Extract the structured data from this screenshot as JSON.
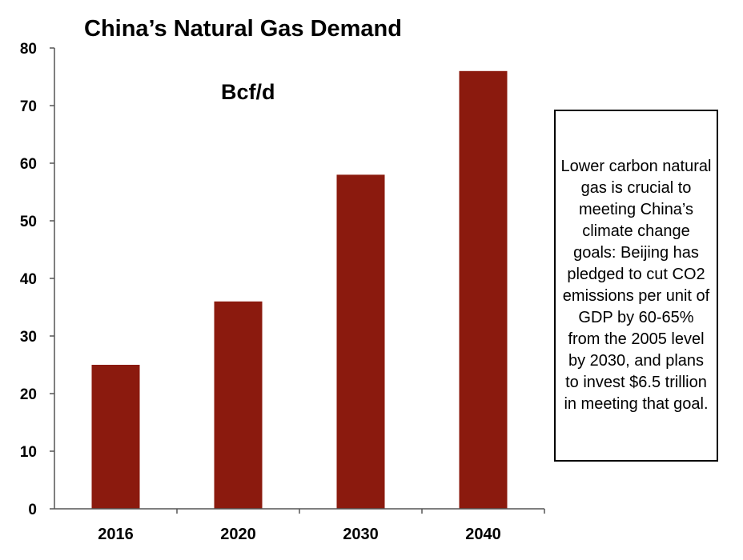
{
  "chart_data": {
    "type": "bar",
    "title": "China’s Natural Gas Demand",
    "unit_label": "Bcf/d",
    "categories": [
      "2016",
      "2020",
      "2030",
      "2040"
    ],
    "values": [
      25,
      36,
      58,
      76
    ],
    "ylim": [
      0,
      80
    ],
    "yticks": [
      "0",
      "10",
      "20",
      "30",
      "40",
      "50",
      "60",
      "70",
      "80"
    ],
    "grid": false,
    "bar_color": "#8b1a0e",
    "annotation": "Lower carbon natural gas is crucial to meeting China’s climate change goals: Beijing has pledged to cut CO2 emissions per unit of GDP by 60-65% from the 2005 level by 2030, and plans to invest $6.5 trillion in meeting that goal."
  }
}
